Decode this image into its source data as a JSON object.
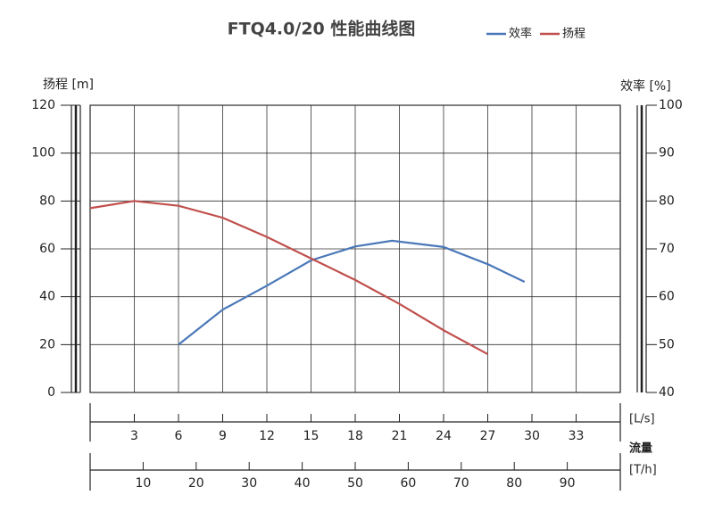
{
  "chart_data": {
    "type": "line",
    "title": "FTQ4.0/20 性能曲线图",
    "y_label": "扬程 [m]",
    "y2_label": "效率 [%]",
    "x_label": "[L/s]",
    "x_caption": "流量",
    "x2_label": "[T/h]",
    "xlim": [
      0,
      36
    ],
    "xticks": [
      3,
      6,
      9,
      12,
      15,
      18,
      21,
      24,
      27,
      30,
      33
    ],
    "x2lim": [
      0,
      100
    ],
    "x2ticks": [
      10,
      20,
      30,
      40,
      50,
      60,
      70,
      80,
      90
    ],
    "ylim": [
      0,
      120
    ],
    "yticks": [
      0,
      20,
      40,
      60,
      80,
      100,
      120
    ],
    "y2lim": [
      40,
      100
    ],
    "y2ticks": [
      40,
      50,
      60,
      70,
      80,
      90,
      100
    ],
    "grid": true,
    "series": [
      {
        "name": "效率",
        "color": "#4a78b8",
        "axis": "y2",
        "x": [
          6,
          9,
          12,
          15,
          18,
          20.5,
          24,
          27,
          29.5
        ],
        "values": [
          50,
          57.3,
          62.3,
          67.6,
          70.5,
          71.7,
          70.4,
          66.8,
          63.1
        ]
      },
      {
        "name": "扬程",
        "color": "#c0504d",
        "x": [
          0,
          3,
          6,
          9,
          12,
          15,
          18,
          21,
          24,
          27
        ],
        "values": [
          77,
          80,
          78,
          73,
          65,
          56,
          47,
          37,
          26,
          16
        ]
      }
    ]
  }
}
